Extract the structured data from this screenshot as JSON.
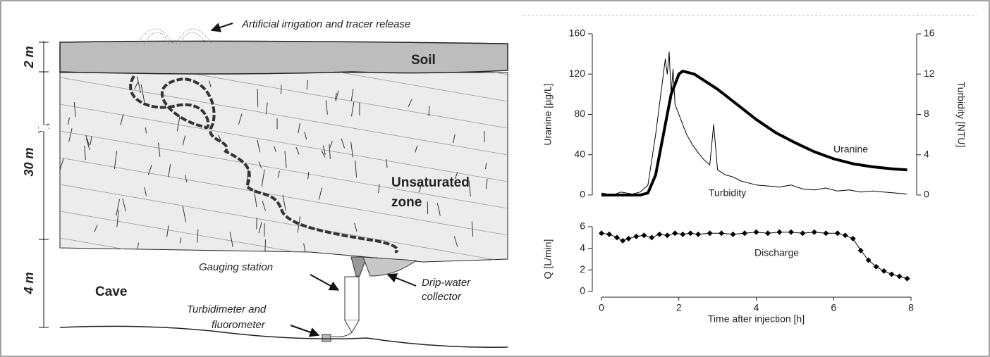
{
  "diagram": {
    "irrigation": "Artificial irrigation and tracer release",
    "soil": "Soil",
    "unsaturated_zone": [
      "Unsaturated",
      "zone"
    ],
    "gauging_station": "Gauging station",
    "drip_collector": [
      "Drip-water",
      "collector"
    ],
    "cave": "Cave",
    "turbidimeter": [
      "Turbidimeter and",
      "fluorometer"
    ],
    "depths": [
      "2 m",
      "30 m",
      "4 m"
    ]
  },
  "chart_data": [
    {
      "type": "line",
      "ylabel": "Uranine [µg/L]",
      "y2label": "Turbidity [NTU]",
      "xlim": [
        0,
        8
      ],
      "ylim": [
        0,
        160
      ],
      "yticks": [
        0,
        40,
        80,
        120,
        160
      ],
      "y2lim": [
        0,
        16
      ],
      "y2ticks": [
        0,
        4,
        8,
        12,
        16
      ],
      "series": [
        {
          "name": "Uranine",
          "color": "#000000",
          "line_width": 4,
          "x": [
            0,
            0.5,
            1.0,
            1.2,
            1.4,
            1.6,
            1.8,
            2.0,
            2.1,
            2.4,
            3.0,
            3.5,
            4.0,
            4.5,
            5.0,
            5.5,
            6.0,
            6.5,
            7.0,
            7.5,
            7.9
          ],
          "values": [
            0,
            0,
            0,
            2,
            20,
            60,
            100,
            120,
            123,
            120,
            105,
            90,
            75,
            62,
            52,
            43,
            36,
            31,
            28,
            26,
            25
          ]
        },
        {
          "name": "Turbidity",
          "color": "#000000",
          "line_width": 1,
          "axis": "y2",
          "x": [
            0,
            0.3,
            0.5,
            0.8,
            1.0,
            1.2,
            1.4,
            1.5,
            1.6,
            1.65,
            1.7,
            1.75,
            1.8,
            1.85,
            1.9,
            2.0,
            2.1,
            2.2,
            2.35,
            2.5,
            2.65,
            2.8,
            2.9,
            3.0,
            3.2,
            3.4,
            3.6,
            3.8,
            4.0,
            4.3,
            4.6,
            4.9,
            5.2,
            5.5,
            5.8,
            6.1,
            6.4,
            6.7,
            7.0,
            7.3,
            7.6,
            7.9
          ],
          "values": [
            0.2,
            0.0,
            0.3,
            0.1,
            0.3,
            1.0,
            6.0,
            9.0,
            12.0,
            13.5,
            12.0,
            14.2,
            10.0,
            12.5,
            9.0,
            8.0,
            7.0,
            6.0,
            5.0,
            4.2,
            3.5,
            3.0,
            7.0,
            2.5,
            2.0,
            1.8,
            1.4,
            1.2,
            1.0,
            0.9,
            0.8,
            1.0,
            0.6,
            0.5,
            0.7,
            0.4,
            0.5,
            0.3,
            0.4,
            0.3,
            0.2,
            0.1
          ]
        }
      ]
    },
    {
      "type": "line",
      "ylabel": "Q [L/min]",
      "xlabel": "Time after injection [h]",
      "xlim": [
        0,
        8
      ],
      "xticks": [
        0,
        2,
        4,
        6,
        8
      ],
      "ylim": [
        0,
        6
      ],
      "yticks": [
        0,
        2,
        4,
        6
      ],
      "series": [
        {
          "name": "Discharge",
          "color": "#000000",
          "line_width": 1,
          "marker": true,
          "x": [
            0,
            0.2,
            0.4,
            0.55,
            0.7,
            0.9,
            1.1,
            1.3,
            1.5,
            1.7,
            1.9,
            2.1,
            2.3,
            2.5,
            2.8,
            3.1,
            3.4,
            3.7,
            4.0,
            4.3,
            4.6,
            4.9,
            5.2,
            5.5,
            5.8,
            6.1,
            6.3,
            6.5,
            6.7,
            6.9,
            7.1,
            7.3,
            7.5,
            7.7,
            7.9
          ],
          "values": [
            5.4,
            5.3,
            5.0,
            4.7,
            4.9,
            5.1,
            5.2,
            5.0,
            5.3,
            5.2,
            5.4,
            5.3,
            5.4,
            5.3,
            5.4,
            5.4,
            5.3,
            5.4,
            5.5,
            5.4,
            5.5,
            5.5,
            5.4,
            5.5,
            5.4,
            5.4,
            5.2,
            4.9,
            3.8,
            2.9,
            2.3,
            1.9,
            1.6,
            1.4,
            1.2
          ]
        }
      ]
    }
  ]
}
